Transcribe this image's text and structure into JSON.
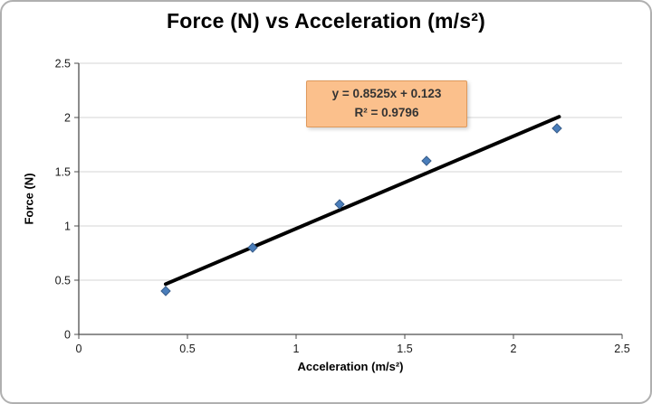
{
  "chart_data": {
    "type": "scatter",
    "title": "Force (N) vs Acceleration (m/s²)",
    "xlabel": "Acceleration (m/s²)",
    "ylabel": "Force (N)",
    "xlim": [
      0,
      2.5
    ],
    "ylim": [
      0,
      2.5
    ],
    "xticks": [
      0,
      0.5,
      1,
      1.5,
      2,
      2.5
    ],
    "yticks": [
      0,
      0.5,
      1,
      1.5,
      2,
      2.5
    ],
    "xtick_labels": [
      "0",
      "0.5",
      "1",
      "1.5",
      "2",
      "2.5"
    ],
    "ytick_labels": [
      "0",
      "0.5",
      "1",
      "1.5",
      "2",
      "2.5"
    ],
    "grid": "horizontal",
    "legend": "none",
    "points": [
      {
        "x": 0.4,
        "y": 0.4
      },
      {
        "x": 0.8,
        "y": 0.8
      },
      {
        "x": 1.2,
        "y": 1.2
      },
      {
        "x": 1.6,
        "y": 1.6
      },
      {
        "x": 2.2,
        "y": 1.9
      }
    ],
    "marker": {
      "shape": "diamond",
      "color": "#4a7ebb",
      "edge": "#385d8a",
      "size": 5
    },
    "trendline": {
      "slope": 0.8525,
      "intercept": 0.123,
      "x_start": 0.4,
      "x_end": 2.21,
      "color": "#000000",
      "width": 4
    },
    "annotation": {
      "line1": "y = 0.8525x + 0.123",
      "line2": "R² = 0.9796",
      "fill": "#fbc08c",
      "border": "#de995c",
      "text_color": "#333333"
    },
    "colors": {
      "grid": "#d6d6d6",
      "axis": "#4d4d4d",
      "tick_text": "#1a1a1a"
    }
  }
}
